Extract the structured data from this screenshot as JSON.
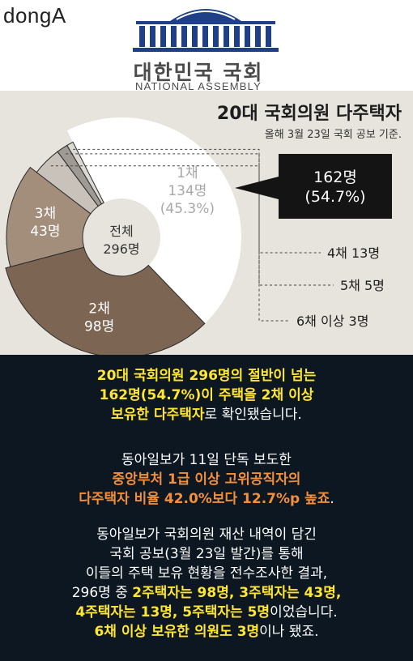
{
  "header": {
    "brand": "dongA",
    "assembly_ko": "대한민국 국회",
    "assembly_en": "NATIONAL ASSEMBLY"
  },
  "chart_data": {
    "type": "pie",
    "title": "20대 국회의원 다주택자",
    "subtitle": "올해 3월 23일 국회 공보 기준.",
    "center_label": [
      "전체",
      "296명"
    ],
    "total": 296,
    "slices": [
      {
        "label": "1채",
        "value": 134,
        "value_text": "134명",
        "percent_text": "(45.3%)",
        "color": "#ffffff",
        "text_color": "#a8a8a8"
      },
      {
        "label": "2채",
        "value": 98,
        "value_text": "98명",
        "color": "#7c6552",
        "text_color": "#ffffff"
      },
      {
        "label": "3채",
        "value": 43,
        "value_text": "43명",
        "color": "#a38e7c",
        "text_color": "#ffffff"
      },
      {
        "label": "4채",
        "value": 13,
        "value_text": "4채 13명",
        "color": "#c8c2ba"
      },
      {
        "label": "5채",
        "value": 5,
        "value_text": "5채 5명",
        "color": "#9f9a93"
      },
      {
        "label": "6채 이상",
        "value": 3,
        "value_text": "6채 이상 3명",
        "color": "#dcd8d2"
      }
    ],
    "callout": {
      "line1": "162명",
      "line2": "(54.7%)"
    }
  },
  "colors": {
    "chart_bg": "#e7e3dd",
    "text_bg": "#0c1722",
    "highlight_yellow": "#ffe631",
    "highlight_orange": "#f28f3b"
  },
  "paragraphs": [
    {
      "lines": [
        [
          {
            "t": "20대 국회의원 296명의 절반이 넘는",
            "c": "y"
          }
        ],
        [
          {
            "t": "162명(54.7%)이 주택을 2채 이상",
            "c": "y"
          }
        ],
        [
          {
            "t": "보유한 다주택자",
            "c": "y"
          },
          {
            "t": "로 확인됐습니다.",
            "c": "w"
          }
        ]
      ]
    },
    {
      "lines": [
        [
          {
            "t": "동아일보가 11일 단독 보도한",
            "c": "w"
          }
        ],
        [
          {
            "t": "중앙부처 1급 이상 고위공직자의",
            "c": "o"
          }
        ],
        [
          {
            "t": "다주택자 비율 42.0%보다 12.7%p 높죠",
            "c": "o"
          },
          {
            "t": ".",
            "c": "w"
          }
        ]
      ]
    },
    {
      "lines": [
        [
          {
            "t": "동아일보가 국회의원 재산 내역이 담긴",
            "c": "w"
          }
        ],
        [
          {
            "t": "국회 공보(3월 23일 발간)를 통해",
            "c": "w"
          }
        ],
        [
          {
            "t": "이들의 주택 보유 현황을 전수조사한 결과,",
            "c": "w"
          }
        ],
        [
          {
            "t": "296명 중 ",
            "c": "w"
          },
          {
            "t": "2주택자는 98명, 3주택자는 43명,",
            "c": "y"
          }
        ],
        [
          {
            "t": "4주택자는 13명, 5주택자는 5명",
            "c": "y"
          },
          {
            "t": "이었습니다.",
            "c": "w"
          }
        ],
        [
          {
            "t": "6채 이상 보유한 의원도 3명",
            "c": "y"
          },
          {
            "t": "이나 됐죠.",
            "c": "w"
          }
        ]
      ]
    }
  ]
}
